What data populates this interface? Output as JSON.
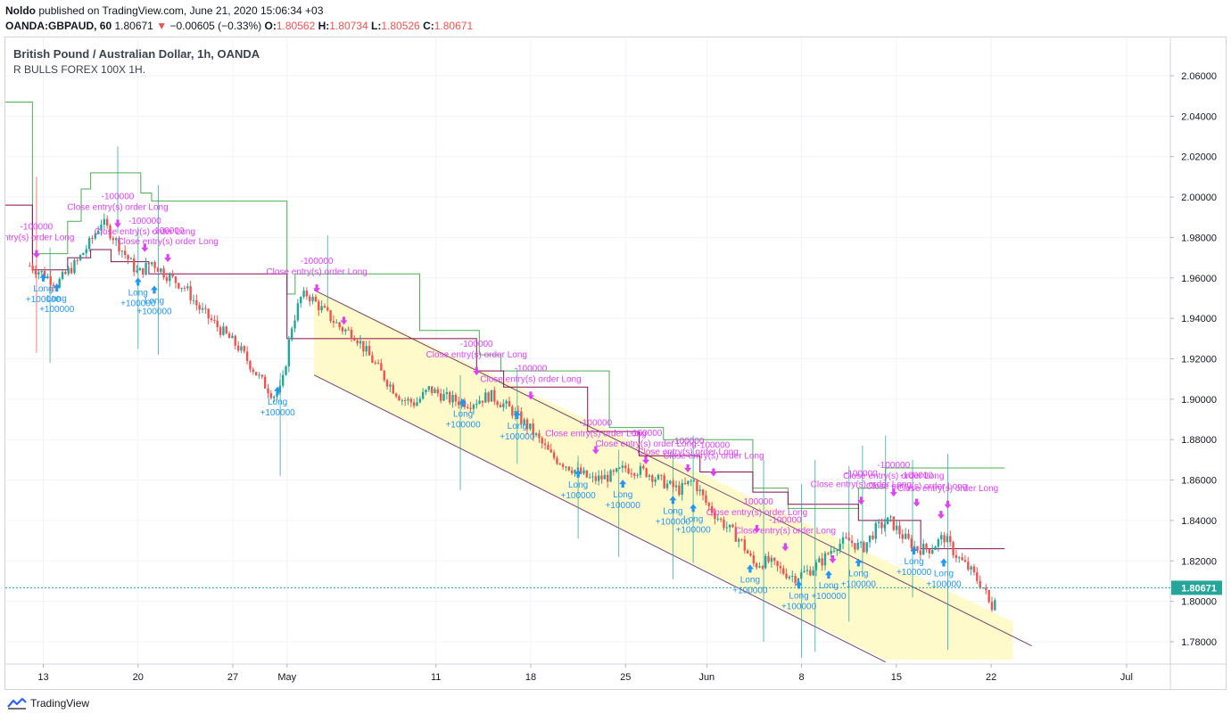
{
  "header": {
    "author": "Noldo",
    "published_text": "published on TradingView.com, June 21, 2020 15:06:34 +03",
    "symbol": "OANDA:GBPAUD, 60",
    "last": "1.80671",
    "change": "−0.00605 (−0.33%)",
    "o_label": "O:",
    "o_value": "1.80562",
    "h_label": "H:",
    "h_value": "1.80734",
    "l_label": "L:",
    "l_value": "1.80526",
    "c_label": "C:",
    "c_value": "1.80671"
  },
  "legend": {
    "title": "British Pound / Australian Dollar, 1h, OANDA",
    "indicator": "R BULLS FOREX 100X 1H."
  },
  "footer": {
    "brand": "TradingView"
  },
  "colors": {
    "up": "#26a69a",
    "down": "#ef5350",
    "long": "#2196f3",
    "close": "#e040fb",
    "channel_fill": "#fff9c4",
    "channel_line": "#7b3f6e",
    "upper_band": "#4caf50",
    "mid_band": "#880e4f"
  },
  "chart_data": {
    "type": "candlestick",
    "y_ticks": [
      "2.06000",
      "2.04000",
      "2.02000",
      "2.00000",
      "1.98000",
      "1.96000",
      "1.94000",
      "1.92000",
      "1.90000",
      "1.88000",
      "1.86000",
      "1.84000",
      "1.82000",
      "1.80000",
      "1.78000"
    ],
    "ylim": [
      1.771,
      2.0805
    ],
    "x_ticks": [
      {
        "label": "13",
        "day": 13
      },
      {
        "label": "20",
        "day": 20
      },
      {
        "label": "27",
        "day": 27
      },
      {
        "label": "May",
        "day": 31
      },
      {
        "label": "11",
        "day": 42
      },
      {
        "label": "18",
        "day": 49
      },
      {
        "label": "25",
        "day": 56
      },
      {
        "label": "Jun",
        "day": 62
      },
      {
        "label": "8",
        "day": 69
      },
      {
        "label": "15",
        "day": 76
      },
      {
        "label": "22",
        "day": 83
      },
      {
        "label": "Jul",
        "day": 93
      }
    ],
    "last_price": 1.80671,
    "last_price_label": "1.80671",
    "price_path": [
      [
        12.0,
        1.966
      ],
      [
        13.0,
        1.962
      ],
      [
        14.0,
        1.957
      ],
      [
        15.5,
        1.968
      ],
      [
        16.5,
        1.978
      ],
      [
        17.3,
        1.988
      ],
      [
        18.0,
        1.982
      ],
      [
        19.0,
        1.972
      ],
      [
        20.0,
        1.962
      ],
      [
        21.0,
        1.968
      ],
      [
        22.0,
        1.962
      ],
      [
        23.5,
        1.955
      ],
      [
        24.5,
        1.945
      ],
      [
        26.0,
        1.935
      ],
      [
        27.5,
        1.925
      ],
      [
        29.0,
        1.91
      ],
      [
        30.0,
        1.902
      ],
      [
        30.6,
        1.905
      ],
      [
        31.3,
        1.935
      ],
      [
        32.0,
        1.95
      ],
      [
        32.5,
        1.952
      ],
      [
        33.5,
        1.945
      ],
      [
        35.0,
        1.935
      ],
      [
        36.0,
        1.932
      ],
      [
        37.0,
        1.922
      ],
      [
        38.5,
        1.908
      ],
      [
        39.5,
        1.9
      ],
      [
        40.5,
        1.898
      ],
      [
        41.5,
        1.905
      ],
      [
        43.0,
        1.9
      ],
      [
        44.5,
        1.898
      ],
      [
        46.0,
        1.902
      ],
      [
        47.5,
        1.895
      ],
      [
        49.0,
        1.885
      ],
      [
        50.5,
        1.872
      ],
      [
        52.0,
        1.866
      ],
      [
        53.5,
        1.86
      ],
      [
        55.0,
        1.862
      ],
      [
        56.0,
        1.866
      ],
      [
        57.5,
        1.864
      ],
      [
        59.0,
        1.858
      ],
      [
        60.0,
        1.855
      ],
      [
        61.0,
        1.86
      ],
      [
        62.0,
        1.848
      ],
      [
        63.0,
        1.84
      ],
      [
        64.5,
        1.83
      ],
      [
        65.5,
        1.818
      ],
      [
        66.5,
        1.82
      ],
      [
        67.5,
        1.815
      ],
      [
        68.5,
        1.812
      ],
      [
        69.5,
        1.815
      ],
      [
        70.5,
        1.82
      ],
      [
        71.5,
        1.828
      ],
      [
        72.5,
        1.83
      ],
      [
        73.5,
        1.826
      ],
      [
        74.5,
        1.836
      ],
      [
        75.5,
        1.84
      ],
      [
        76.5,
        1.832
      ],
      [
        77.5,
        1.826
      ],
      [
        78.5,
        1.826
      ],
      [
        79.5,
        1.832
      ],
      [
        80.5,
        1.822
      ],
      [
        81.5,
        1.815
      ],
      [
        82.5,
        1.806
      ],
      [
        83.0,
        1.796
      ],
      [
        83.4,
        1.8067
      ]
    ],
    "upper_band": [
      [
        10.2,
        2.047
      ],
      [
        12.2,
        2.047
      ],
      [
        12.2,
        1.972
      ],
      [
        14.8,
        1.972
      ],
      [
        14.8,
        1.988
      ],
      [
        15.8,
        1.988
      ],
      [
        15.8,
        2.004
      ],
      [
        16.5,
        2.004
      ],
      [
        16.5,
        2.012
      ],
      [
        20.2,
        2.012
      ],
      [
        20.2,
        2.002
      ],
      [
        21.0,
        2.002
      ],
      [
        21.0,
        1.998
      ],
      [
        31.0,
        1.998
      ],
      [
        31.0,
        1.952
      ],
      [
        31.6,
        1.952
      ],
      [
        31.6,
        1.962
      ],
      [
        40.8,
        1.962
      ],
      [
        40.8,
        1.934
      ],
      [
        45.2,
        1.934
      ],
      [
        45.2,
        1.922
      ],
      [
        46.8,
        1.922
      ],
      [
        46.8,
        1.914
      ],
      [
        54.8,
        1.914
      ],
      [
        54.8,
        1.886
      ],
      [
        58.8,
        1.886
      ],
      [
        58.8,
        1.88
      ],
      [
        65.4,
        1.88
      ],
      [
        65.4,
        1.856
      ],
      [
        68.0,
        1.856
      ],
      [
        68.0,
        1.846
      ],
      [
        73.2,
        1.846
      ],
      [
        73.2,
        1.856
      ],
      [
        75.2,
        1.856
      ],
      [
        75.2,
        1.866
      ],
      [
        84.0,
        1.866
      ]
    ],
    "mid_band": [
      [
        10.2,
        1.996
      ],
      [
        12.2,
        1.996
      ],
      [
        12.2,
        1.964
      ],
      [
        14.8,
        1.964
      ],
      [
        14.8,
        1.97
      ],
      [
        16.5,
        1.97
      ],
      [
        16.5,
        1.974
      ],
      [
        18.0,
        1.974
      ],
      [
        18.0,
        1.968
      ],
      [
        20.8,
        1.968
      ],
      [
        20.8,
        1.962
      ],
      [
        31.0,
        1.962
      ],
      [
        31.0,
        1.93
      ],
      [
        45.0,
        1.93
      ],
      [
        45.0,
        1.914
      ],
      [
        47.0,
        1.914
      ],
      [
        47.0,
        1.906
      ],
      [
        53.2,
        1.906
      ],
      [
        53.2,
        1.884
      ],
      [
        57.0,
        1.884
      ],
      [
        57.0,
        1.872
      ],
      [
        61.5,
        1.872
      ],
      [
        61.5,
        1.864
      ],
      [
        65.4,
        1.864
      ],
      [
        65.4,
        1.854
      ],
      [
        68.0,
        1.854
      ],
      [
        68.0,
        1.848
      ],
      [
        73.2,
        1.848
      ],
      [
        73.2,
        1.84
      ],
      [
        77.8,
        1.84
      ],
      [
        77.8,
        1.826
      ],
      [
        84.0,
        1.826
      ]
    ],
    "channel": {
      "upper": [
        [
          33.0,
          1.954
        ],
        [
          75.2,
          1.82
        ]
      ],
      "lower": [
        [
          33.0,
          1.912
        ],
        [
          75.2,
          1.77
        ]
      ],
      "fill_end": [
        [
          75.2,
          1.82
        ],
        [
          84.6,
          1.79
        ],
        [
          84.6,
          1.771
        ],
        [
          75.2,
          1.771
        ]
      ],
      "lower_ext": [
        [
          75.2,
          1.77
        ],
        [
          84.6,
          1.771
        ]
      ],
      "upper_ext": [
        [
          75.2,
          1.82
        ],
        [
          86.0,
          1.778
        ]
      ]
    },
    "spikes": [
      {
        "day": 12.5,
        "y1": 2.01,
        "y2": 1.923,
        "c": "down"
      },
      {
        "day": 13.5,
        "y1": 1.975,
        "y2": 1.918,
        "c": "up"
      },
      {
        "day": 18.5,
        "y1": 2.025,
        "y2": 1.982,
        "c": "up"
      },
      {
        "day": 20.0,
        "y1": 1.985,
        "y2": 1.925,
        "c": "up"
      },
      {
        "day": 21.5,
        "y1": 2.006,
        "y2": 1.922,
        "c": "up"
      },
      {
        "day": 30.5,
        "y1": 1.913,
        "y2": 1.862,
        "c": "up"
      },
      {
        "day": 34.0,
        "y1": 1.981,
        "y2": 1.945,
        "c": "up"
      },
      {
        "day": 43.8,
        "y1": 1.912,
        "y2": 1.855,
        "c": "up"
      },
      {
        "day": 48.0,
        "y1": 1.915,
        "y2": 1.868,
        "c": "up"
      },
      {
        "day": 52.5,
        "y1": 1.872,
        "y2": 1.831,
        "c": "up"
      },
      {
        "day": 55.5,
        "y1": 1.875,
        "y2": 1.822,
        "c": "up"
      },
      {
        "day": 59.5,
        "y1": 1.875,
        "y2": 1.811,
        "c": "up"
      },
      {
        "day": 61.0,
        "y1": 1.882,
        "y2": 1.819,
        "c": "up"
      },
      {
        "day": 66.2,
        "y1": 1.87,
        "y2": 1.78,
        "c": "up"
      },
      {
        "day": 69.0,
        "y1": 1.858,
        "y2": 1.772,
        "c": "up"
      },
      {
        "day": 70.0,
        "y1": 1.87,
        "y2": 1.775,
        "c": "up"
      },
      {
        "day": 72.5,
        "y1": 1.867,
        "y2": 1.79,
        "c": "up"
      },
      {
        "day": 73.5,
        "y1": 1.877,
        "y2": 1.812,
        "c": "up"
      },
      {
        "day": 75.2,
        "y1": 1.882,
        "y2": 1.832,
        "c": "up"
      },
      {
        "day": 77.2,
        "y1": 1.87,
        "y2": 1.802,
        "c": "up"
      },
      {
        "day": 79.8,
        "y1": 1.873,
        "y2": 1.776,
        "c": "up"
      }
    ],
    "trades": [
      {
        "type": "long",
        "day": 13.0,
        "price": 1.96,
        "label1": "Long",
        "label2": "+100000"
      },
      {
        "type": "long",
        "day": 14.0,
        "price": 1.955,
        "label1": "Long",
        "label2": "+100000"
      },
      {
        "type": "long",
        "day": 20.0,
        "price": 1.958,
        "label1": "Long",
        "label2": "+100000"
      },
      {
        "type": "long",
        "day": 21.2,
        "price": 1.954,
        "label1": "Long",
        "label2": "+100000"
      },
      {
        "type": "long",
        "day": 30.3,
        "price": 1.904,
        "label1": "Long",
        "label2": "+100000"
      },
      {
        "type": "long",
        "day": 44.0,
        "price": 1.898,
        "label1": "Long",
        "label2": "+100000"
      },
      {
        "type": "long",
        "day": 48.0,
        "price": 1.892,
        "label1": "Long",
        "label2": "+100000"
      },
      {
        "type": "long",
        "day": 52.5,
        "price": 1.863,
        "label1": "Long",
        "label2": "+100000"
      },
      {
        "type": "long",
        "day": 55.8,
        "price": 1.858,
        "label1": "Long",
        "label2": "+100000"
      },
      {
        "type": "long",
        "day": 59.5,
        "price": 1.85,
        "label1": "Long",
        "label2": "+100000"
      },
      {
        "type": "long",
        "day": 61.0,
        "price": 1.846,
        "label1": "Long",
        "label2": "+100000"
      },
      {
        "type": "long",
        "day": 65.2,
        "price": 1.816,
        "label1": "Long",
        "label2": "+100000"
      },
      {
        "type": "long",
        "day": 68.8,
        "price": 1.808,
        "label1": "Long",
        "label2": "+100000"
      },
      {
        "type": "long",
        "day": 71.0,
        "price": 1.813,
        "label1": "Long",
        "label2": "+100000"
      },
      {
        "type": "long",
        "day": 73.2,
        "price": 1.819,
        "label1": "Long",
        "label2": "+100000"
      },
      {
        "type": "long",
        "day": 77.3,
        "price": 1.825,
        "label1": "Long",
        "label2": "+100000"
      },
      {
        "type": "long",
        "day": 79.5,
        "price": 1.819,
        "label1": "Long",
        "label2": "+100000"
      },
      {
        "type": "close",
        "day": 12.5,
        "price": 1.972,
        "label1": "-100000",
        "label2": "entry(s) order Long"
      },
      {
        "type": "close",
        "day": 18.5,
        "price": 1.987,
        "label1": "-100000",
        "label2": "Close entry(s) order Long"
      },
      {
        "type": "close",
        "day": 20.5,
        "price": 1.975,
        "label1": "-100000",
        "label2": "Close entry(s) order Long"
      },
      {
        "type": "close",
        "day": 22.2,
        "price": 1.97,
        "label1": "-100000",
        "label2": "Close entry(s) order Long"
      },
      {
        "type": "close",
        "day": 33.2,
        "price": 1.955,
        "label1": "-100000",
        "label2": "Close entry(s) order Long"
      },
      {
        "type": "close",
        "day": 35.2,
        "price": 1.939,
        "label1": "",
        "label2": ""
      },
      {
        "type": "close",
        "day": 45.0,
        "price": 1.914,
        "label1": "-100000",
        "label2": "Close entry(s) order Long"
      },
      {
        "type": "close",
        "day": 49.0,
        "price": 1.902,
        "label1": "-100000",
        "label2": "Close entry(s) order Long"
      },
      {
        "type": "close",
        "day": 53.8,
        "price": 1.875,
        "label1": "-100000",
        "label2": "Close entry(s) order Long"
      },
      {
        "type": "close",
        "day": 57.5,
        "price": 1.87,
        "label1": "-100000",
        "label2": "Close entry(s) order Long"
      },
      {
        "type": "close",
        "day": 60.6,
        "price": 1.866,
        "label1": "-100000",
        "label2": "Close entry(s) order Long"
      },
      {
        "type": "close",
        "day": 62.5,
        "price": 1.864,
        "label1": "-100000",
        "label2": "Close entry(s) order Long"
      },
      {
        "type": "close",
        "day": 65.7,
        "price": 1.836,
        "label1": "-100000",
        "label2": "Close entry(s) order Long"
      },
      {
        "type": "close",
        "day": 67.8,
        "price": 1.827,
        "label1": "-100000",
        "label2": "Close entry(s) order Long"
      },
      {
        "type": "close",
        "day": 71.3,
        "price": 1.821,
        "label1": "",
        "label2": ""
      },
      {
        "type": "close",
        "day": 73.4,
        "price": 1.85,
        "label1": "-100000",
        "label2": "Close entry(s) order Long"
      },
      {
        "type": "close",
        "day": 75.8,
        "price": 1.854,
        "label1": "-100000",
        "label2": "Close entry(s) order Long"
      },
      {
        "type": "close",
        "day": 77.5,
        "price": 1.849,
        "label1": "-100000",
        "label2": "Close entry(s) order Long"
      },
      {
        "type": "close",
        "day": 79.3,
        "price": 1.843,
        "label1": "",
        "label2": ""
      },
      {
        "type": "close",
        "day": 79.8,
        "price": 1.848,
        "label1": "",
        "label2": "Close entry(s) order Long"
      }
    ]
  }
}
